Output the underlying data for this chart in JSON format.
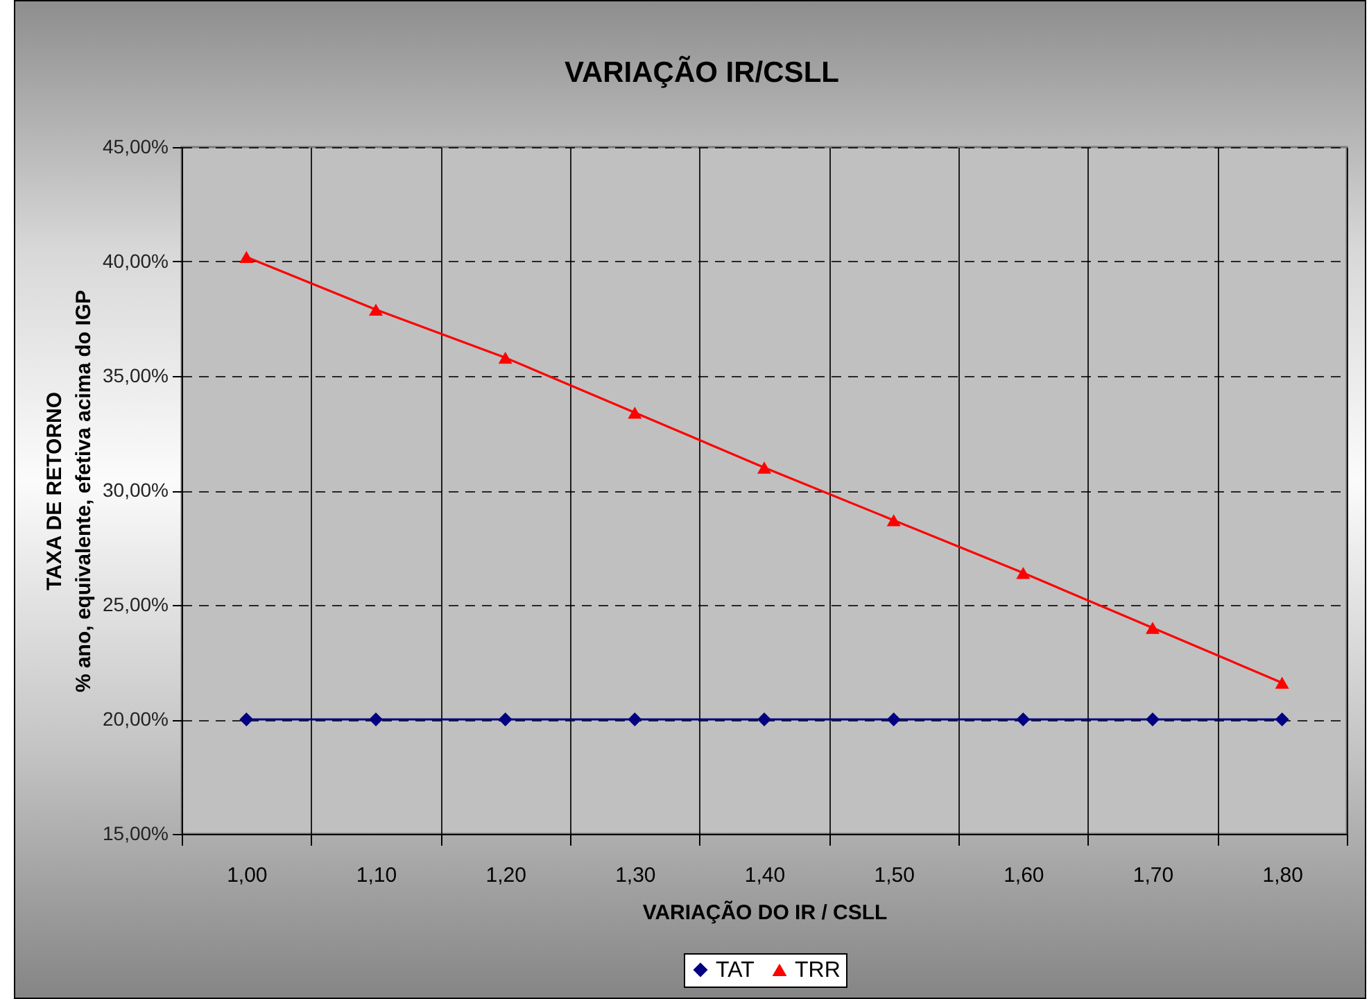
{
  "chart_data": {
    "type": "line",
    "title": "VARIAÇÃO IR/CSLL",
    "xlabel": "VARIAÇÃO DO IR / CSLL",
    "ylabel": "TAXA DE RETORNO\n% ano, equivalente, efetiva acima do IGP",
    "categories": [
      "1,00",
      "1,10",
      "1,20",
      "1,30",
      "1,40",
      "1,50",
      "1,60",
      "1,70",
      "1,80"
    ],
    "series": [
      {
        "name": "TAT",
        "color": "#000080",
        "marker": "diamond",
        "values": [
          20,
          20,
          20,
          20,
          20,
          20,
          20,
          20,
          20
        ]
      },
      {
        "name": "TRR",
        "color": "#ff0000",
        "marker": "triangle",
        "values": [
          40.2,
          37.9,
          35.8,
          33.4,
          31.0,
          28.7,
          26.4,
          24.0,
          21.6
        ]
      }
    ],
    "ylim": [
      15,
      45
    ],
    "yticks": [
      {
        "value": 15,
        "label": "15,00%"
      },
      {
        "value": 20,
        "label": "20,00%"
      },
      {
        "value": 25,
        "label": "25,00%"
      },
      {
        "value": 30,
        "label": "30,00%"
      },
      {
        "value": 35,
        "label": "35,00%"
      },
      {
        "value": 40,
        "label": "40,00%"
      },
      {
        "value": 45,
        "label": "45,00%"
      }
    ],
    "grid": true,
    "legend": "bottom",
    "line_style": "solid"
  }
}
